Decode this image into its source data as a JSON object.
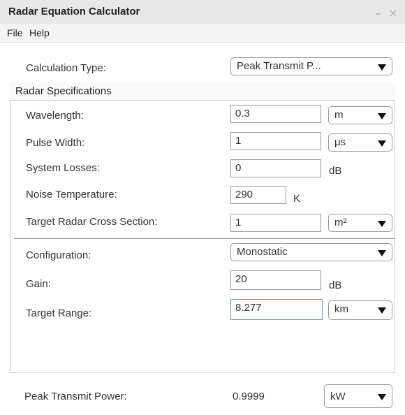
{
  "window": {
    "title": "Radar Equation Calculator"
  },
  "menu": [
    "File",
    "Help"
  ],
  "calculation_type": {
    "label": "Calculation Type:",
    "value": "Peak Transmit P..."
  },
  "radar_specifications": {
    "title": "Radar Specifications",
    "wavelength": {
      "label": "Wavelength:",
      "value": "0.3",
      "unit": "m"
    },
    "pulse_width": {
      "label": "Pulse Width:",
      "value": "1",
      "unit": "μs"
    },
    "system_losses": {
      "label": "System Losses:",
      "value": "0",
      "unit": "dB"
    },
    "noise_temperature": {
      "label": "Noise Temperature:",
      "value": "290",
      "unit": "K"
    },
    "target_rcs": {
      "label": "Target Radar Cross Section:",
      "value": "1",
      "unit": "m²"
    }
  },
  "configuration": {
    "label": "Configuration:",
    "value": "Monostatic"
  },
  "gain": {
    "label": "Gain:",
    "value": "20",
    "unit": "dB"
  },
  "target_range": {
    "label": "Target Range:",
    "value": "8.277",
    "unit": "km"
  },
  "result": {
    "label": "Peak Transmit Power:",
    "value": "0.9999",
    "unit": "kW"
  }
}
